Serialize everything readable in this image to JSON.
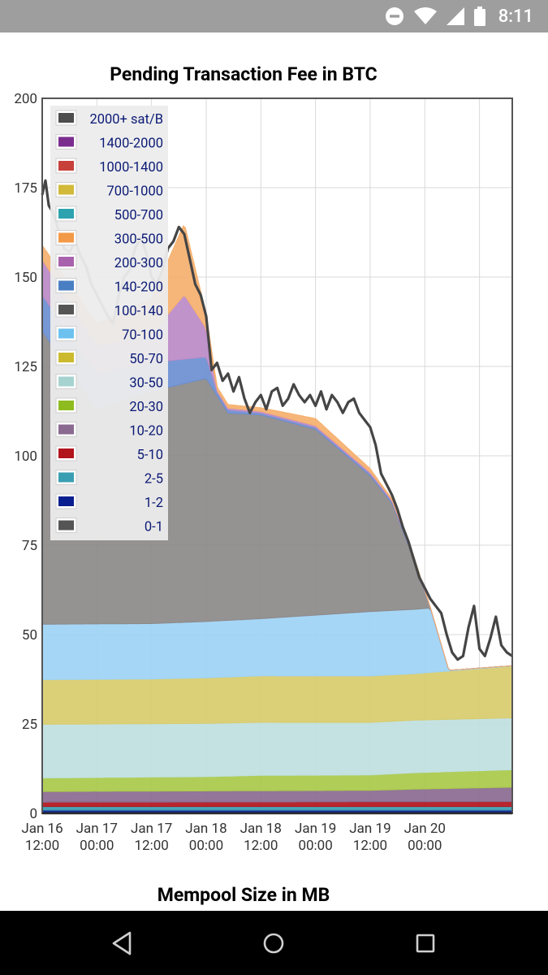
{
  "status_bar": {
    "time": "8:11",
    "icons": [
      "do-not-disturb-icon",
      "wifi-icon",
      "cellular-signal-icon",
      "battery-icon"
    ]
  },
  "chart_data": {
    "type": "area",
    "stacked": true,
    "title": "Pending Transaction Fee in BTC",
    "xlabel": "",
    "ylabel": "",
    "ylim": [
      0,
      200
    ],
    "xlim": [
      0,
      4.3
    ],
    "y_ticks": [
      0,
      25,
      50,
      75,
      100,
      125,
      150,
      175,
      200
    ],
    "x_ticks": [
      {
        "x": 0,
        "label": [
          "Jan 16",
          "12:00"
        ]
      },
      {
        "x": 0.5,
        "label": [
          "Jan 17",
          "00:00"
        ]
      },
      {
        "x": 1.0,
        "label": [
          "Jan 17",
          "12:00"
        ]
      },
      {
        "x": 1.5,
        "label": [
          "Jan 18",
          "00:00"
        ]
      },
      {
        "x": 2.0,
        "label": [
          "Jan 18",
          "12:00"
        ]
      },
      {
        "x": 2.5,
        "label": [
          "Jan 19",
          "00:00"
        ]
      },
      {
        "x": 3.0,
        "label": [
          "Jan 19",
          "12:00"
        ]
      },
      {
        "x": 3.5,
        "label": [
          "Jan 20",
          "00:00"
        ]
      }
    ],
    "x_unit": "days since Jan 16 12:00",
    "grid": true,
    "legend_position": "top-left",
    "legend": [
      {
        "name": "2000+ sat/B",
        "color": "#4d4d4d"
      },
      {
        "name": "1400-2000",
        "color": "#7b2d8e"
      },
      {
        "name": "1000-1400",
        "color": "#c8403a"
      },
      {
        "name": "700-1000",
        "color": "#d2b93a"
      },
      {
        "name": "500-700",
        "color": "#2ea3b0"
      },
      {
        "name": "300-500",
        "color": "#f39a48"
      },
      {
        "name": "200-300",
        "color": "#a862ad"
      },
      {
        "name": "140-200",
        "color": "#4a7ec2"
      },
      {
        "name": "100-140",
        "color": "#555555"
      },
      {
        "name": "70-100",
        "color": "#6cc1ef"
      },
      {
        "name": "50-70",
        "color": "#cbba2e"
      },
      {
        "name": "30-50",
        "color": "#a6d3d0"
      },
      {
        "name": "20-30",
        "color": "#8ebc1f"
      },
      {
        "name": "10-20",
        "color": "#8a6a90"
      },
      {
        "name": "5-10",
        "color": "#b2141c"
      },
      {
        "name": "2-5",
        "color": "#3a9eb2"
      },
      {
        "name": "1-2",
        "color": "#0a1f8f"
      },
      {
        "name": "0-1",
        "color": "#555555"
      }
    ],
    "series": [
      {
        "name": "0-1",
        "color": "#4b4b4b",
        "x": [
          0,
          4.3
        ],
        "values": [
          0.3,
          0.3
        ]
      },
      {
        "name": "1-2",
        "color": "#0a1f8f",
        "x": [
          0,
          4.3
        ],
        "values": [
          0.6,
          0.6
        ]
      },
      {
        "name": "2-5",
        "color": "#3a9eb2",
        "x": [
          0,
          4.3
        ],
        "values": [
          1.0,
          1.0
        ]
      },
      {
        "name": "5-10",
        "color": "#b2141c",
        "x": [
          0,
          2.5,
          4.3
        ],
        "values": [
          1.2,
          1.3,
          1.4
        ]
      },
      {
        "name": "10-20",
        "color": "#8a6a90",
        "x": [
          0,
          1.5,
          3.0,
          3.4,
          4.3
        ],
        "values": [
          3.0,
          3.1,
          3.2,
          3.5,
          4.0
        ]
      },
      {
        "name": "20-30",
        "color": "#a9c94a",
        "x": [
          0,
          1.5,
          2.0,
          3.0,
          3.4,
          4.3
        ],
        "values": [
          3.8,
          4.0,
          4.3,
          4.3,
          4.6,
          4.9
        ]
      },
      {
        "name": "30-50",
        "color": "#c0e0e0",
        "x": [
          0,
          1.5,
          3.0,
          3.4,
          4.3
        ],
        "values": [
          15.0,
          14.9,
          14.7,
          14.7,
          14.5
        ]
      },
      {
        "name": "50-70",
        "color": "#d8cc6c",
        "x": [
          0,
          1.0,
          2.0,
          3.0,
          3.4,
          4.3
        ],
        "values": [
          12.5,
          12.5,
          13.0,
          13.0,
          13.0,
          14.5
        ]
      },
      {
        "name": "70-100",
        "color": "#9ed3f5",
        "x": [
          0,
          1.0,
          2.0,
          3.0,
          3.55,
          3.72,
          4.3
        ],
        "values": [
          15.5,
          15.5,
          16.0,
          18.0,
          18.0,
          0.2,
          0.1
        ]
      },
      {
        "name": "100-140",
        "color": "#8c8989",
        "x": [
          0,
          0.5,
          1.0,
          1.5,
          1.7,
          2.0,
          2.5,
          3.0,
          3.2,
          3.4,
          3.55,
          3.72,
          4.3
        ],
        "values": [
          82,
          60,
          65,
          68,
          58,
          57,
          52,
          38,
          30,
          14,
          0,
          0,
          0
        ]
      },
      {
        "name": "140-200",
        "color": "#6b8fd1",
        "x": [
          0,
          0.5,
          1.0,
          1.5,
          1.6,
          2.0,
          3.0,
          3.1,
          3.7,
          4.3
        ],
        "values": [
          10,
          10,
          8,
          6,
          1,
          0.5,
          0.5,
          0.5,
          0,
          0
        ]
      },
      {
        "name": "200-300",
        "color": "#bb8ac7",
        "x": [
          0,
          0.5,
          1.0,
          1.3,
          1.5,
          1.6,
          2.0,
          2.5,
          3.0,
          3.1,
          3.7,
          4.3
        ],
        "values": [
          10,
          8,
          8,
          18,
          8,
          0.5,
          0.5,
          0.5,
          0.5,
          0.5,
          0,
          0
        ]
      },
      {
        "name": "300-500",
        "color": "#f5b06e",
        "x": [
          0,
          0.5,
          1.0,
          1.3,
          1.5,
          1.6,
          2.0,
          2.5,
          3.0,
          3.1,
          3.7,
          4.3
        ],
        "values": [
          4,
          6,
          10,
          20,
          4,
          1,
          1,
          2,
          1,
          0.5,
          0,
          0
        ]
      },
      {
        "name": "500-700",
        "color": "#2ea3b0",
        "x": [
          0,
          4.3
        ],
        "values": [
          0,
          0
        ]
      },
      {
        "name": "700-1000",
        "color": "#d2b93a",
        "x": [
          0,
          4.3
        ],
        "values": [
          0,
          0
        ]
      },
      {
        "name": "1000-1400",
        "color": "#c8403a",
        "x": [
          0,
          4.3
        ],
        "values": [
          0,
          0
        ]
      },
      {
        "name": "1400-2000",
        "color": "#7b2d8e",
        "x": [
          0,
          4.3
        ],
        "values": [
          0,
          0
        ]
      },
      {
        "name": "2000+ sat/B",
        "color": "#4d4d4d",
        "x": [
          0,
          4.3
        ],
        "values": [
          0,
          0
        ]
      }
    ],
    "total_outline": {
      "color": "#454545",
      "x": [
        0,
        0.03,
        0.06,
        0.1,
        0.15,
        0.2,
        0.25,
        0.3,
        0.35,
        0.4,
        0.45,
        0.5,
        0.55,
        0.6,
        0.65,
        0.7,
        0.75,
        0.8,
        0.85,
        0.9,
        0.95,
        1.0,
        1.05,
        1.1,
        1.15,
        1.2,
        1.25,
        1.3,
        1.35,
        1.4,
        1.45,
        1.5,
        1.55,
        1.6,
        1.65,
        1.7,
        1.75,
        1.8,
        1.85,
        1.9,
        1.95,
        2.0,
        2.05,
        2.1,
        2.15,
        2.2,
        2.25,
        2.3,
        2.35,
        2.4,
        2.45,
        2.5,
        2.55,
        2.6,
        2.65,
        2.7,
        2.75,
        2.8,
        2.85,
        2.9,
        2.95,
        3.0,
        3.05,
        3.1,
        3.15,
        3.2,
        3.25,
        3.3,
        3.35,
        3.4,
        3.45,
        3.5,
        3.55,
        3.6,
        3.65,
        3.7,
        3.75,
        3.8,
        3.85,
        3.9,
        3.95,
        4.0,
        4.05,
        4.1,
        4.15,
        4.2,
        4.25,
        4.3
      ],
      "values": [
        173,
        177,
        170,
        168,
        163,
        158,
        157,
        160,
        156,
        153,
        148,
        145,
        142,
        139,
        137,
        145,
        150,
        152,
        158,
        161,
        157,
        150,
        148,
        152,
        158,
        160,
        164,
        162,
        155,
        148,
        145,
        139,
        124,
        126,
        121,
        123,
        118,
        122,
        116,
        112,
        115,
        117,
        113,
        118,
        119,
        114,
        116,
        120,
        117,
        115,
        117,
        114,
        118,
        113,
        117,
        115,
        112,
        115,
        116,
        112,
        110,
        108,
        103,
        95,
        92,
        89,
        85,
        80,
        76,
        71,
        66,
        63,
        60,
        58,
        56,
        50,
        45,
        43,
        44,
        52,
        58,
        46,
        44,
        49,
        55,
        47,
        45,
        44
      ]
    }
  },
  "second_chart": {
    "title": "Mempool Size in MB"
  },
  "nav_bar": {
    "buttons": [
      "back-icon",
      "home-icon",
      "recents-icon"
    ]
  }
}
